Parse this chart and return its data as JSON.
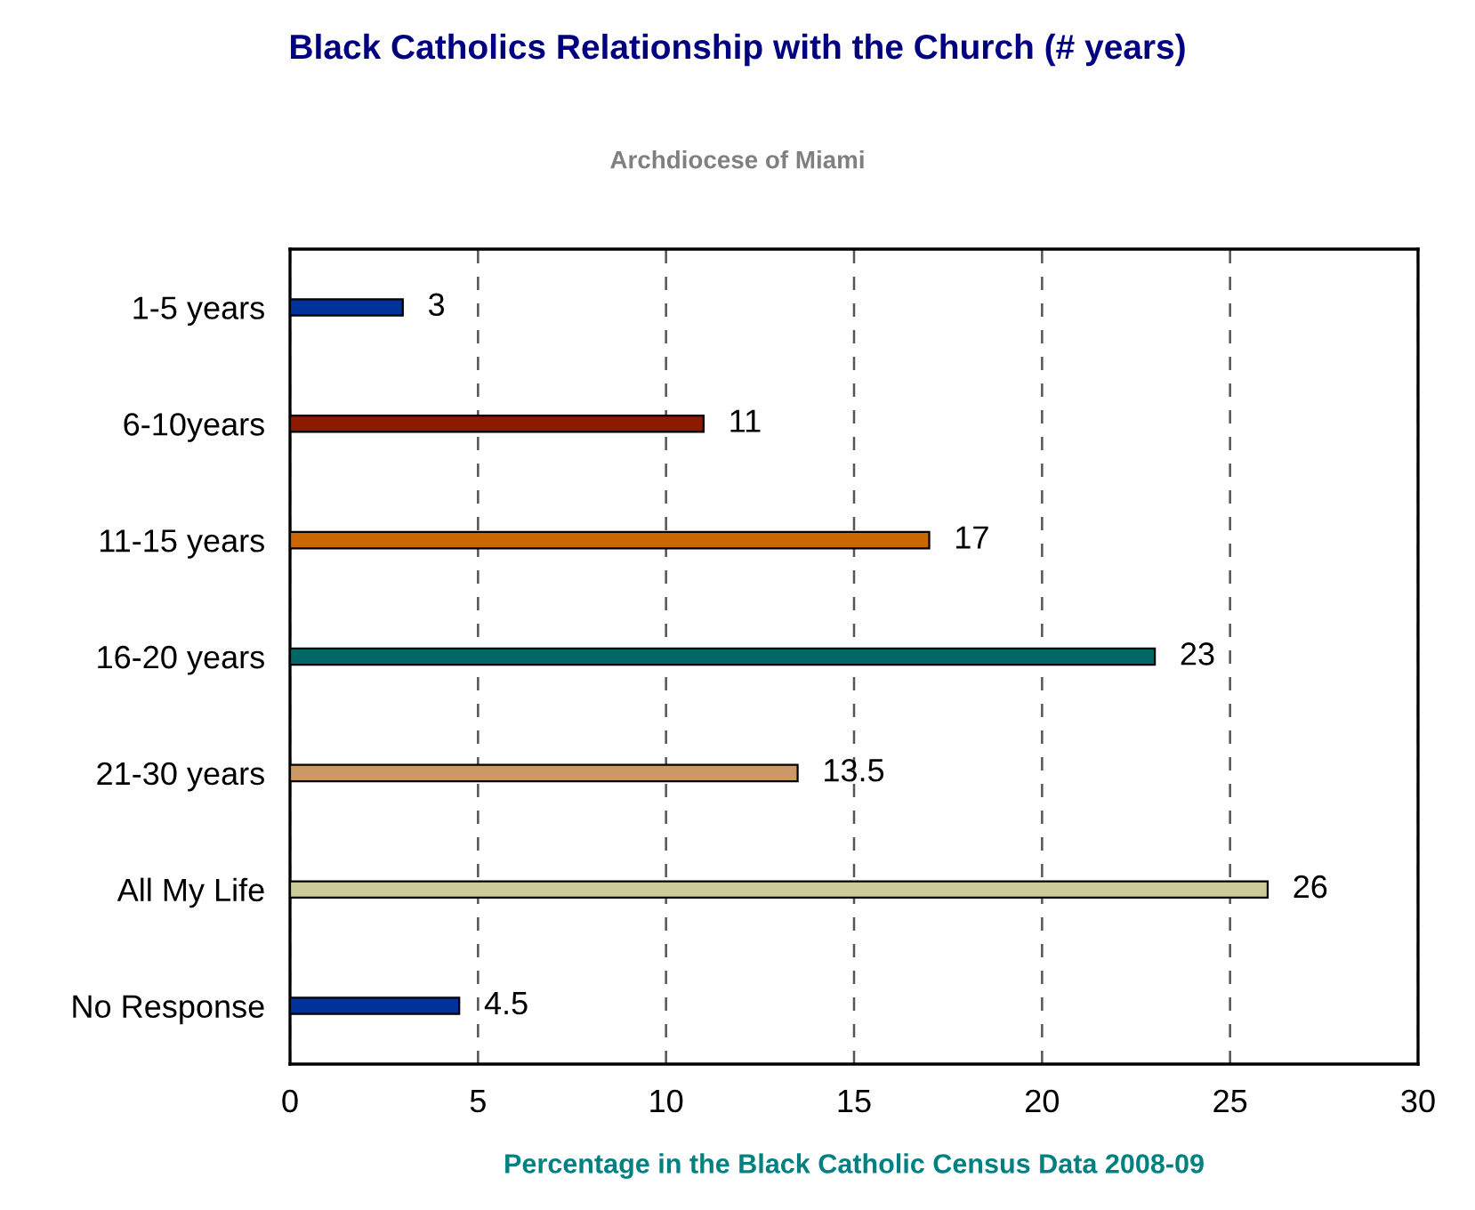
{
  "chart_data": {
    "type": "bar",
    "orientation": "horizontal",
    "title": "Black Catholics Relationship with the Church (# years)",
    "subtitle": "Archdiocese of Miami",
    "xlabel": "Percentage in the Black Catholic Census Data 2008-09",
    "categories": [
      "1-5 years",
      "6-10years",
      "11-15 years",
      "16-20 years",
      "21-30 years",
      "All My Life",
      "No Response"
    ],
    "values": [
      3,
      11,
      17,
      23,
      13.5,
      26,
      4.5
    ],
    "colors": [
      "#003399",
      "#8b1a00",
      "#cc6600",
      "#006666",
      "#cc9966",
      "#cccc99",
      "#003399"
    ],
    "xlim": [
      0,
      30
    ],
    "xticks": [
      0,
      5,
      10,
      15,
      20,
      25,
      30
    ],
    "grid": "x",
    "data_labels": true,
    "legend": false
  }
}
